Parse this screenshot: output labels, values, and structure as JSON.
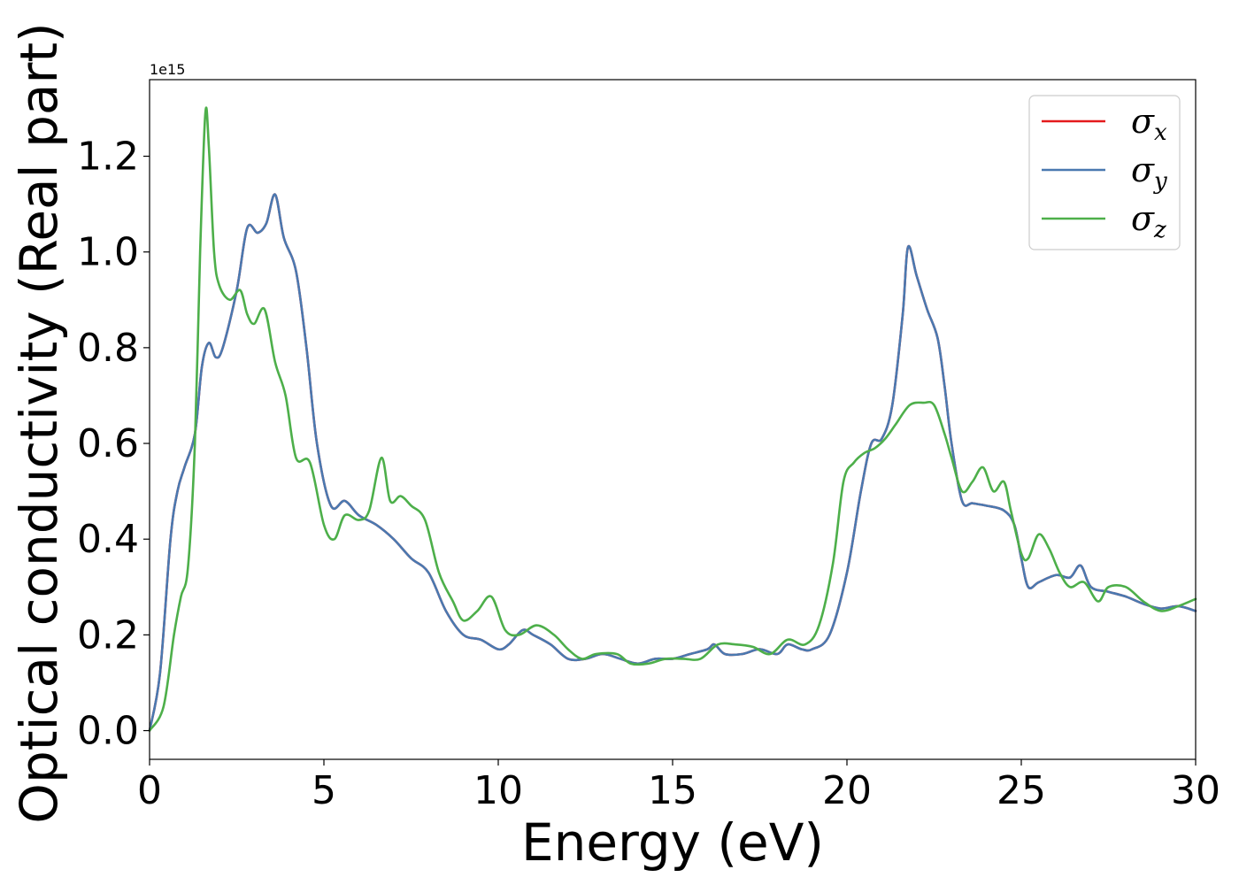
{
  "chart_data": {
    "type": "line",
    "xlabel": "Energy (eV)",
    "ylabel": "Optical conductivity (Real part)",
    "y_offset_label": "1e15",
    "xlim": [
      0,
      30
    ],
    "ylim": [
      -0.06,
      1.36
    ],
    "x_ticks": [
      0,
      5,
      10,
      15,
      20,
      25,
      30
    ],
    "y_ticks": [
      0.0,
      0.2,
      0.4,
      0.6,
      0.8,
      1.0,
      1.2
    ],
    "y_tick_labels": [
      "0.0",
      "0.2",
      "0.4",
      "0.6",
      "0.8",
      "1.0",
      "1.2"
    ],
    "grid": false,
    "legend_position": "top-right",
    "series": [
      {
        "name": "σx",
        "symbol": "σ",
        "subscript": "x",
        "color": "#e41a1c",
        "x": [
          0,
          0.3,
          0.6,
          0.8,
          1.0,
          1.3,
          1.5,
          1.7,
          1.9,
          2.1,
          2.5,
          2.8,
          3.1,
          3.35,
          3.6,
          3.85,
          4.2,
          4.5,
          4.8,
          5.2,
          5.6,
          6.0,
          6.5,
          7.0,
          7.5,
          8.0,
          8.5,
          9.0,
          9.5,
          10.0,
          10.3,
          10.7,
          11.0,
          11.5,
          12.0,
          12.5,
          13.0,
          13.5,
          14.0,
          14.5,
          15.0,
          15.5,
          16.0,
          16.2,
          16.5,
          17.0,
          17.5,
          18.0,
          18.3,
          18.7,
          19.0,
          19.5,
          20.0,
          20.4,
          20.7,
          21.0,
          21.3,
          21.6,
          21.75,
          22.0,
          22.3,
          22.6,
          22.8,
          23.0,
          23.3,
          23.6,
          24.0,
          24.5,
          24.8,
          25.0,
          25.2,
          25.5,
          26.0,
          26.4,
          26.7,
          27.0,
          27.5,
          28.0,
          28.5,
          29.0,
          29.5,
          30.0
        ],
        "values": [
          0.0,
          0.12,
          0.4,
          0.5,
          0.55,
          0.62,
          0.76,
          0.81,
          0.78,
          0.8,
          0.92,
          1.05,
          1.04,
          1.06,
          1.12,
          1.03,
          0.96,
          0.8,
          0.6,
          0.47,
          0.48,
          0.45,
          0.43,
          0.4,
          0.36,
          0.33,
          0.25,
          0.2,
          0.19,
          0.17,
          0.18,
          0.21,
          0.2,
          0.18,
          0.15,
          0.15,
          0.16,
          0.15,
          0.14,
          0.15,
          0.15,
          0.16,
          0.17,
          0.18,
          0.16,
          0.16,
          0.17,
          0.16,
          0.18,
          0.17,
          0.17,
          0.2,
          0.33,
          0.5,
          0.6,
          0.61,
          0.68,
          0.87,
          1.01,
          0.95,
          0.88,
          0.82,
          0.72,
          0.6,
          0.48,
          0.475,
          0.47,
          0.46,
          0.43,
          0.36,
          0.3,
          0.31,
          0.325,
          0.32,
          0.345,
          0.3,
          0.29,
          0.28,
          0.265,
          0.255,
          0.26,
          0.25
        ]
      },
      {
        "name": "σy",
        "symbol": "σ",
        "subscript": "y",
        "color": "#4a79b0",
        "x": [
          0,
          0.3,
          0.6,
          0.8,
          1.0,
          1.3,
          1.5,
          1.7,
          1.9,
          2.1,
          2.5,
          2.8,
          3.1,
          3.35,
          3.6,
          3.85,
          4.2,
          4.5,
          4.8,
          5.2,
          5.6,
          6.0,
          6.5,
          7.0,
          7.5,
          8.0,
          8.5,
          9.0,
          9.5,
          10.0,
          10.3,
          10.7,
          11.0,
          11.5,
          12.0,
          12.5,
          13.0,
          13.5,
          14.0,
          14.5,
          15.0,
          15.5,
          16.0,
          16.2,
          16.5,
          17.0,
          17.5,
          18.0,
          18.3,
          18.7,
          19.0,
          19.5,
          20.0,
          20.4,
          20.7,
          21.0,
          21.3,
          21.6,
          21.75,
          22.0,
          22.3,
          22.6,
          22.8,
          23.0,
          23.3,
          23.6,
          24.0,
          24.5,
          24.8,
          25.0,
          25.2,
          25.5,
          26.0,
          26.4,
          26.7,
          27.0,
          27.5,
          28.0,
          28.5,
          29.0,
          29.5,
          30.0
        ],
        "values": [
          0.0,
          0.12,
          0.4,
          0.5,
          0.55,
          0.62,
          0.76,
          0.81,
          0.78,
          0.8,
          0.92,
          1.05,
          1.04,
          1.06,
          1.12,
          1.03,
          0.96,
          0.8,
          0.6,
          0.47,
          0.48,
          0.45,
          0.43,
          0.4,
          0.36,
          0.33,
          0.25,
          0.2,
          0.19,
          0.17,
          0.18,
          0.21,
          0.2,
          0.18,
          0.15,
          0.15,
          0.16,
          0.15,
          0.14,
          0.15,
          0.15,
          0.16,
          0.17,
          0.18,
          0.16,
          0.16,
          0.17,
          0.16,
          0.18,
          0.17,
          0.17,
          0.2,
          0.33,
          0.5,
          0.6,
          0.61,
          0.68,
          0.87,
          1.01,
          0.95,
          0.88,
          0.82,
          0.72,
          0.6,
          0.48,
          0.475,
          0.47,
          0.46,
          0.43,
          0.36,
          0.3,
          0.31,
          0.325,
          0.32,
          0.345,
          0.3,
          0.29,
          0.28,
          0.265,
          0.255,
          0.26,
          0.25
        ]
      },
      {
        "name": "σz",
        "symbol": "σ",
        "subscript": "z",
        "color": "#4daf4a",
        "x": [
          0,
          0.4,
          0.7,
          0.9,
          1.1,
          1.3,
          1.45,
          1.6,
          1.7,
          1.85,
          2.0,
          2.3,
          2.6,
          2.8,
          3.0,
          3.3,
          3.6,
          3.9,
          4.2,
          4.6,
          5.0,
          5.3,
          5.6,
          6.0,
          6.3,
          6.65,
          6.9,
          7.2,
          7.5,
          7.9,
          8.3,
          8.7,
          9.0,
          9.4,
          9.8,
          10.2,
          10.6,
          11.1,
          11.6,
          12.0,
          12.4,
          12.8,
          13.4,
          13.8,
          14.3,
          14.8,
          15.3,
          15.8,
          16.3,
          16.8,
          17.3,
          17.8,
          18.3,
          18.8,
          19.2,
          19.6,
          19.9,
          20.2,
          20.5,
          20.8,
          21.1,
          21.4,
          21.8,
          22.2,
          22.5,
          22.8,
          23.0,
          23.3,
          23.6,
          23.9,
          24.2,
          24.5,
          24.7,
          25.0,
          25.2,
          25.5,
          25.8,
          26.1,
          26.4,
          26.8,
          27.2,
          27.5,
          28.0,
          28.5,
          29.0,
          29.5,
          30.0
        ],
        "values": [
          0.0,
          0.05,
          0.2,
          0.28,
          0.34,
          0.6,
          1.0,
          1.29,
          1.22,
          1.0,
          0.93,
          0.9,
          0.92,
          0.87,
          0.85,
          0.88,
          0.77,
          0.7,
          0.57,
          0.56,
          0.43,
          0.4,
          0.45,
          0.44,
          0.46,
          0.57,
          0.48,
          0.49,
          0.47,
          0.44,
          0.33,
          0.27,
          0.23,
          0.25,
          0.28,
          0.21,
          0.2,
          0.22,
          0.2,
          0.17,
          0.15,
          0.16,
          0.16,
          0.14,
          0.14,
          0.15,
          0.15,
          0.15,
          0.18,
          0.18,
          0.175,
          0.16,
          0.19,
          0.18,
          0.22,
          0.35,
          0.52,
          0.56,
          0.58,
          0.59,
          0.61,
          0.64,
          0.68,
          0.685,
          0.68,
          0.62,
          0.57,
          0.5,
          0.52,
          0.55,
          0.5,
          0.52,
          0.46,
          0.37,
          0.36,
          0.41,
          0.38,
          0.33,
          0.3,
          0.31,
          0.27,
          0.3,
          0.3,
          0.27,
          0.25,
          0.26,
          0.275
        ]
      }
    ]
  }
}
